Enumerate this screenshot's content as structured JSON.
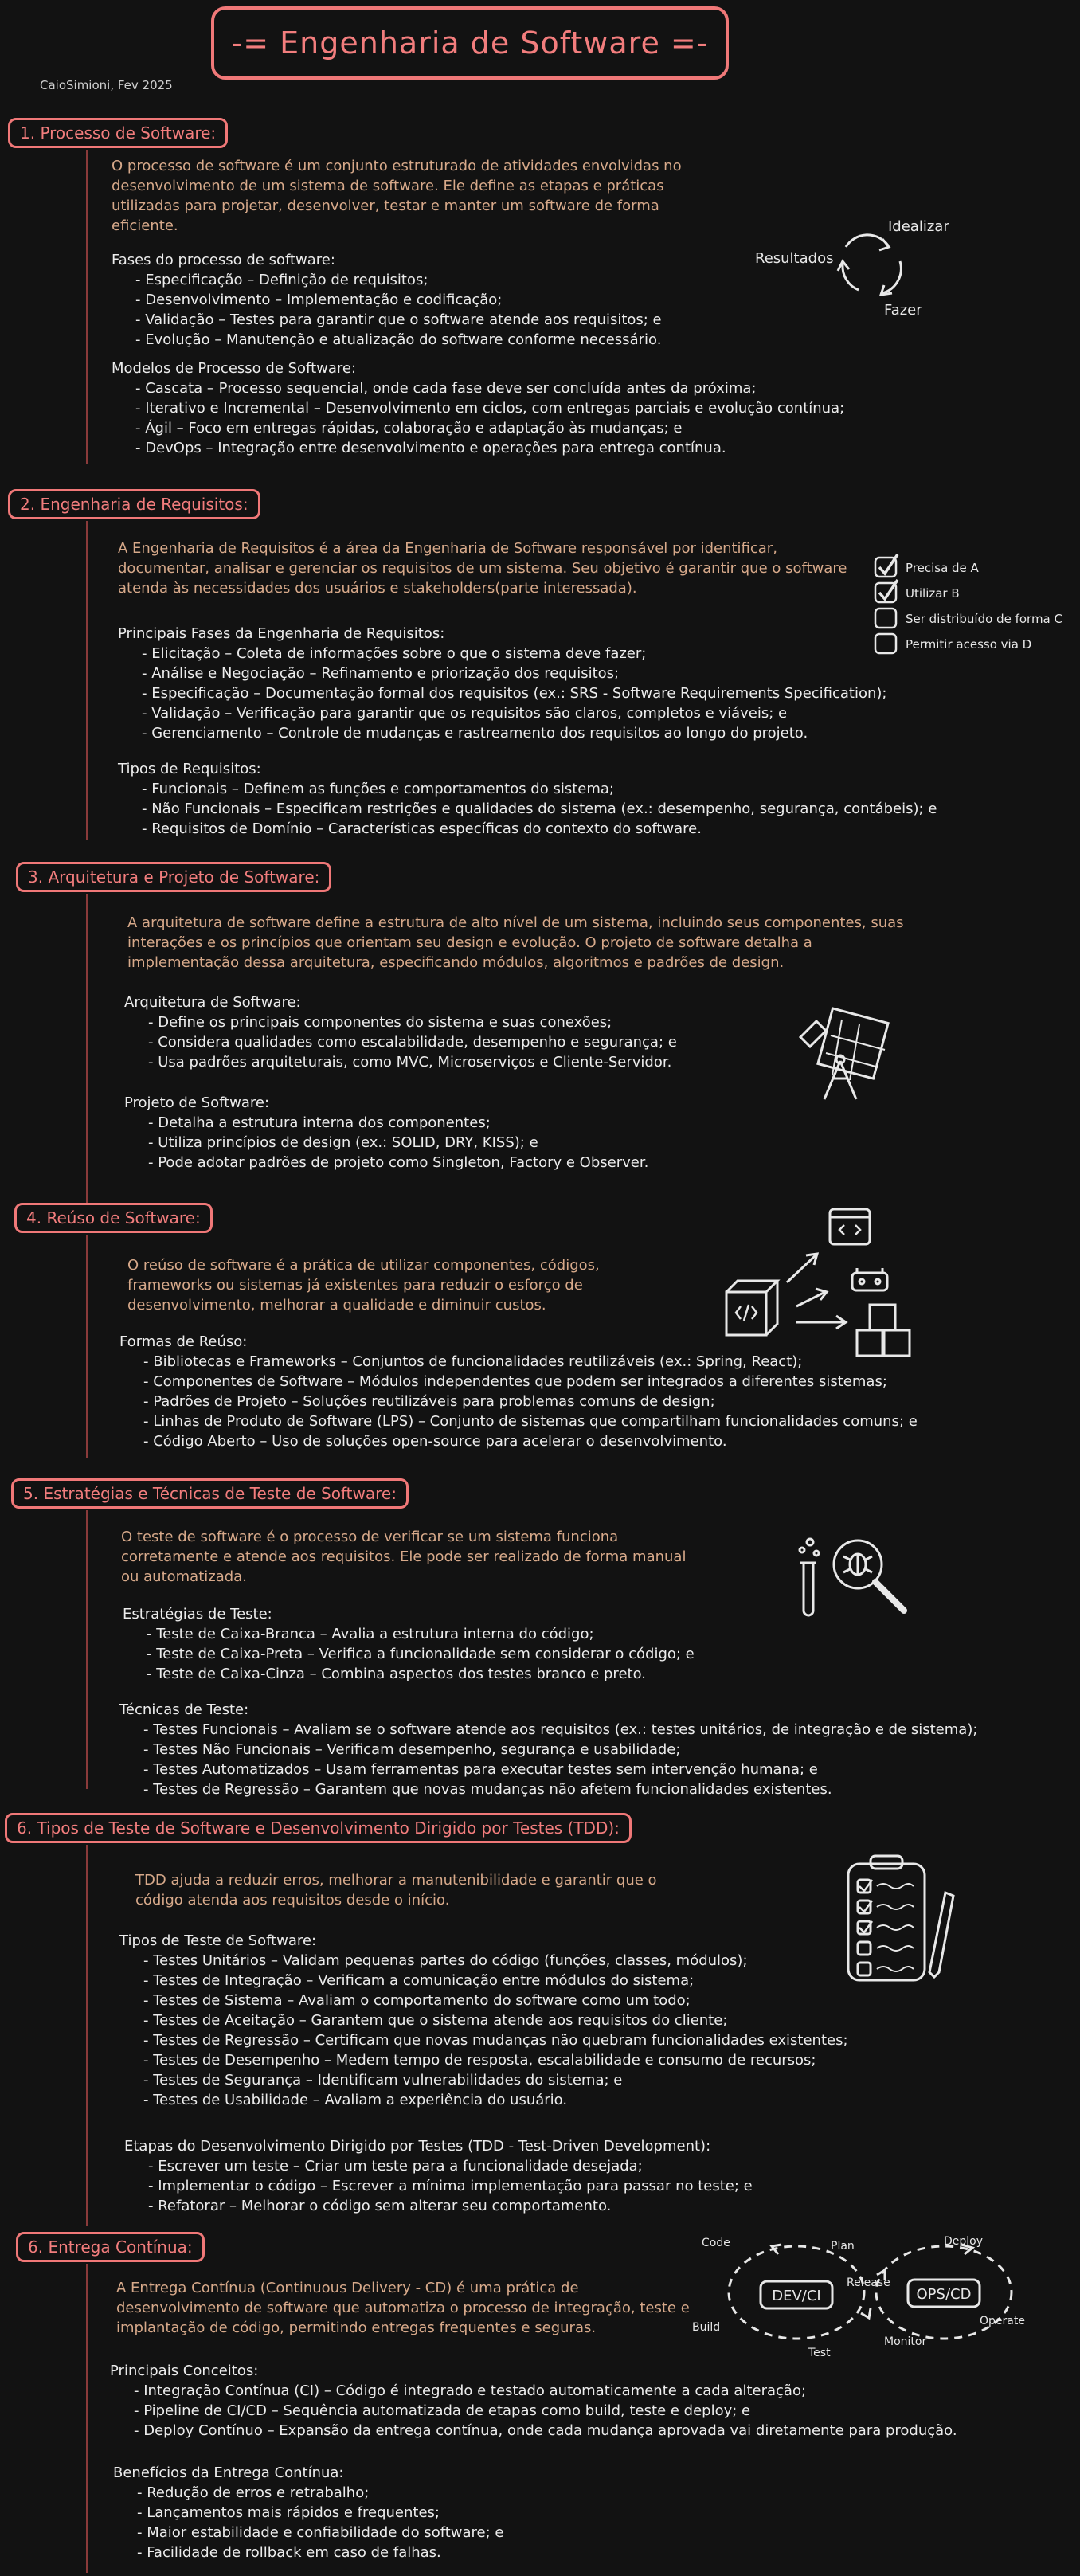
{
  "title": "-= Engenharia de Software =-",
  "author": "CaioSimioni, Fev 2025",
  "cycle": {
    "idealizar": "Idealizar",
    "resultados": "Resultados",
    "fazer": "Fazer"
  },
  "req_checklist": [
    {
      "label": "Precisa de A",
      "checked": true
    },
    {
      "label": "Utilizar B",
      "checked": true
    },
    {
      "label": "Ser distribuído de forma C",
      "checked": false
    },
    {
      "label": "Permitir acesso via D",
      "checked": false
    }
  ],
  "devops": {
    "dev": "DEV/CI",
    "ops": "OPS/CD",
    "code": "Code",
    "plan": "Plan",
    "build": "Build",
    "test": "Test",
    "release": "Release",
    "deploy": "Deploy",
    "operate": "Operate",
    "monitor": "Monitor"
  },
  "sections": [
    {
      "title": "1. Processo de Software:",
      "intro": "O processo de software é um conjunto estruturado de atividades envolvidas no desenvolvimento de um sistema de software. Ele define as etapas e práticas utilizadas para projetar, desenvolver, testar e manter um software de forma eficiente.",
      "blocks": [
        {
          "header": "Fases do processo de software:",
          "items": [
            "Especificação – Definição de requisitos;",
            "Desenvolvimento – Implementação e codificação;",
            "Validação – Testes para garantir que o software atende aos requisitos; e",
            "Evolução – Manutenção e atualização do software conforme necessário."
          ]
        },
        {
          "header": "Modelos de Processo de Software:",
          "items": [
            "Cascata – Processo sequencial, onde cada fase deve ser concluída antes da próxima;",
            "Iterativo e Incremental – Desenvolvimento em ciclos, com entregas parciais e evolução contínua;",
            "Ágil – Foco em entregas rápidas, colaboração e adaptação às mudanças; e",
            "DevOps – Integração entre desenvolvimento e operações para entrega contínua."
          ]
        }
      ]
    },
    {
      "title": "2. Engenharia de Requisitos:",
      "intro": "A Engenharia de Requisitos é a área da Engenharia de Software responsável por identificar, documentar, analisar e gerenciar os requisitos de um sistema. Seu objetivo é garantir que o software atenda às necessidades dos usuários e stakeholders(parte interessada).",
      "blocks": [
        {
          "header": "Principais Fases da Engenharia de Requisitos:",
          "items": [
            "Elicitação – Coleta de informações sobre o que o sistema deve fazer;",
            "Análise e Negociação – Refinamento e priorização dos requisitos;",
            "Especificação – Documentação formal dos requisitos (ex.: SRS - Software Requirements Specification);",
            "Validação – Verificação para garantir que os requisitos são claros, completos e viáveis; e",
            "Gerenciamento – Controle de mudanças e rastreamento dos requisitos ao longo do projeto."
          ]
        },
        {
          "header": "Tipos de Requisitos:",
          "items": [
            "Funcionais – Definem as funções e comportamentos do sistema;",
            "Não Funcionais – Especificam restrições e qualidades do sistema (ex.: desempenho, segurança, contábeis); e",
            "Requisitos de Domínio – Características específicas do contexto do software."
          ]
        }
      ]
    },
    {
      "title": "3. Arquitetura e Projeto de Software:",
      "intro": "A arquitetura de software define a estrutura de alto nível de um sistema, incluindo seus componentes, suas interações e os princípios que orientam seu design e evolução. O projeto de software detalha a implementação dessa arquitetura, especificando módulos, algoritmos e padrões de design.",
      "blocks": [
        {
          "header": "Arquitetura de Software:",
          "items": [
            "Define os principais componentes do sistema e suas conexões;",
            "Considera qualidades como escalabilidade, desempenho e segurança; e",
            "Usa padrões arquiteturais, como MVC, Microserviços e Cliente-Servidor."
          ]
        },
        {
          "header": "Projeto de Software:",
          "items": [
            "Detalha a estrutura interna dos componentes;",
            "Utiliza princípios de design (ex.: SOLID, DRY, KISS); e",
            "Pode adotar padrões de projeto como Singleton, Factory e Observer."
          ]
        }
      ]
    },
    {
      "title": "4. Reúso de Software:",
      "intro": "O reúso de software é a prática de utilizar componentes, códigos, frameworks ou sistemas já existentes para reduzir o esforço de desenvolvimento, melhorar a qualidade e diminuir custos.",
      "blocks": [
        {
          "header": "Formas de Reúso:",
          "items": [
            "Bibliotecas e Frameworks – Conjuntos de funcionalidades reutilizáveis (ex.: Spring, React);",
            "Componentes de Software – Módulos independentes que podem ser integrados a diferentes sistemas;",
            "Padrões de Projeto – Soluções reutilizáveis para problemas comuns de design;",
            "Linhas de Produto de Software (LPS) – Conjunto de sistemas que compartilham funcionalidades comuns; e",
            "Código Aberto – Uso de soluções open-source para acelerar o desenvolvimento."
          ]
        }
      ]
    },
    {
      "title": "5. Estratégias e Técnicas de Teste de Software:",
      "intro": "O teste de software é o processo de verificar se um sistema funciona corretamente e atende aos requisitos. Ele pode ser realizado de forma manual ou automatizada.",
      "blocks": [
        {
          "header": "Estratégias de Teste:",
          "items": [
            "Teste de Caixa-Branca – Avalia a estrutura interna do código;",
            "Teste de Caixa-Preta – Verifica a funcionalidade sem considerar o código; e",
            "Teste de Caixa-Cinza – Combina aspectos dos testes branco e preto."
          ]
        },
        {
          "header": "Técnicas de Teste:",
          "items": [
            "Testes Funcionais – Avaliam se o software atende aos requisitos (ex.: testes unitários, de integração e de sistema);",
            "Testes Não Funcionais – Verificam desempenho, segurança e usabilidade;",
            "Testes Automatizados – Usam ferramentas para executar testes sem intervenção humana; e",
            "Testes de Regressão – Garantem que novas mudanças não afetem funcionalidades existentes."
          ]
        }
      ]
    },
    {
      "title": "6. Tipos de Teste de Software e Desenvolvimento Dirigido por Testes (TDD):",
      "intro": "TDD ajuda a reduzir erros, melhorar a manutenibilidade e garantir que o código atenda aos requisitos desde o início.",
      "blocks": [
        {
          "header": "Tipos de Teste de Software:",
          "items": [
            "Testes Unitários – Validam pequenas partes do código (funções, classes, módulos);",
            "Testes de Integração – Verificam a comunicação entre módulos do sistema;",
            "Testes de Sistema – Avaliam o comportamento do software como um todo;",
            "Testes de Aceitação – Garantem que o sistema atende aos requisitos do cliente;",
            "Testes de Regressão – Certificam que novas mudanças não quebram funcionalidades existentes;",
            "Testes de Desempenho – Medem tempo de resposta, escalabilidade e consumo de recursos;",
            "Testes de Segurança – Identificam vulnerabilidades do sistema; e",
            "Testes de Usabilidade – Avaliam a experiência do usuário."
          ]
        },
        {
          "header": "Etapas do Desenvolvimento Dirigido por Testes (TDD - Test-Driven Development):",
          "items": [
            "Escrever um teste – Criar um teste para a funcionalidade desejada;",
            "Implementar o código – Escrever a mínima implementação para passar no teste; e",
            "Refatorar – Melhorar o código sem alterar seu comportamento."
          ]
        }
      ]
    },
    {
      "title": "6. Entrega Contínua:",
      "intro": "A Entrega Contínua (Continuous Delivery - CD) é uma prática de desenvolvimento de software que automatiza o processo de integração, teste e implantação de código, permitindo entregas frequentes e seguras.",
      "blocks": [
        {
          "header": "Principais Conceitos:",
          "items": [
            "Integração Contínua (CI) – Código é integrado e testado automaticamente a cada alteração;",
            "Pipeline de CI/CD – Sequência automatizada de etapas como build, teste e deploy; e",
            "Deploy Contínuo – Expansão da entrega contínua, onde cada mudança aprovada vai diretamente para produção."
          ]
        },
        {
          "header": "Benefícios da Entrega Contínua:",
          "items": [
            "Redução de erros e retrabalho;",
            "Lançamentos mais rápidos e frequentes;",
            "Maior estabilidade e confiabilidade do software; e",
            "Facilidade de rollback em caso de falhas."
          ]
        }
      ]
    }
  ]
}
